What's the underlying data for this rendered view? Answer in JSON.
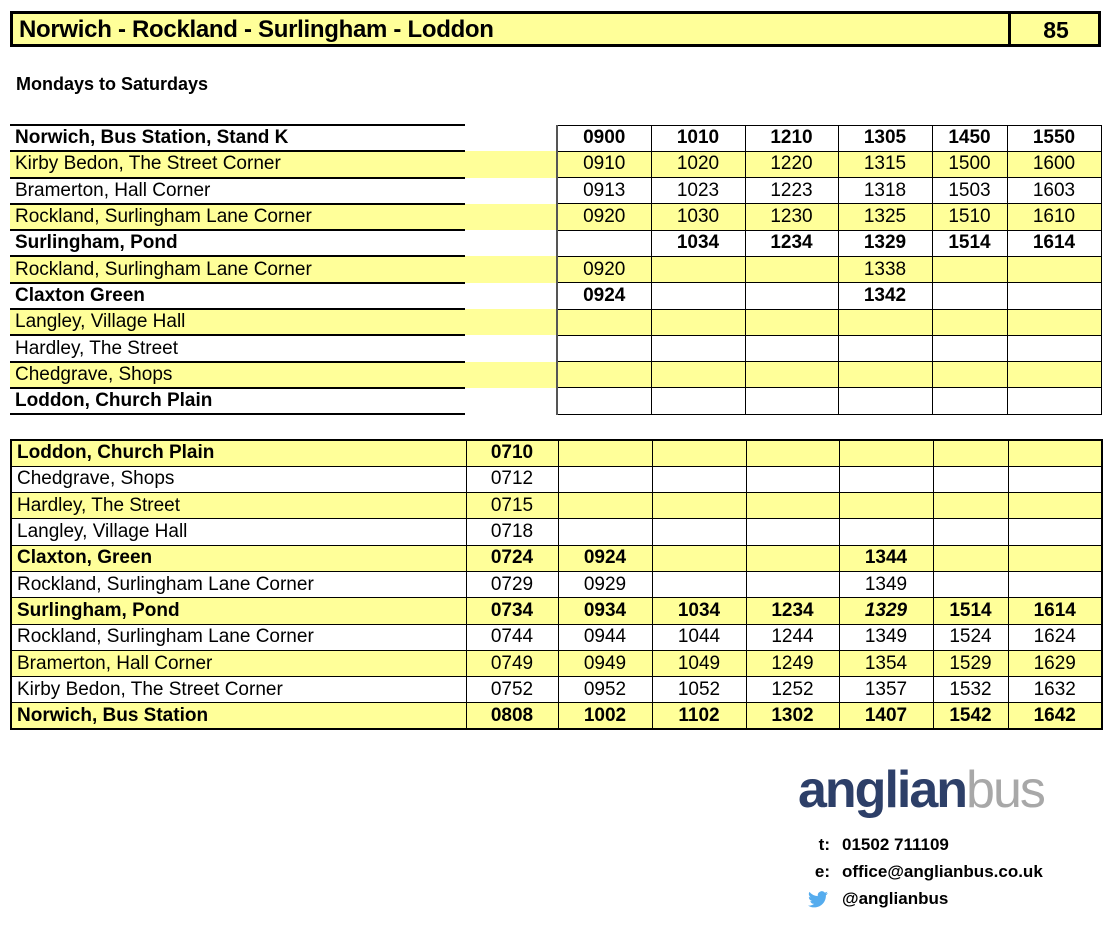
{
  "header": {
    "title": "Norwich - Rockland - Surlingham - Loddon",
    "route": "85"
  },
  "days": "Mondays to Saturdays",
  "colors": {
    "highlight": "#ffff99",
    "brand_primary": "#2d3f68",
    "brand_secondary": "#a8a8a8",
    "twitter": "#55acee"
  },
  "outbound": [
    {
      "stop": "Norwich, Bus Station, Stand K",
      "bold": true,
      "times": [
        "0900",
        "1010",
        "1210",
        "1305",
        "1450",
        "1550"
      ]
    },
    {
      "stop": "Kirby Bedon, The Street Corner",
      "times": [
        "0910",
        "1020",
        "1220",
        "1315",
        "1500",
        "1600"
      ]
    },
    {
      "stop": "Bramerton, Hall Corner",
      "times": [
        "0913",
        "1023",
        "1223",
        "1318",
        "1503",
        "1603"
      ]
    },
    {
      "stop": "Rockland, Surlingham Lane Corner",
      "times": [
        "0920",
        "1030",
        "1230",
        "1325",
        "1510",
        "1610"
      ]
    },
    {
      "stop": "Surlingham, Pond",
      "bold": true,
      "times": [
        "",
        "1034",
        "1234",
        "1329",
        "1514",
        "1614"
      ]
    },
    {
      "stop": "Rockland, Surlingham Lane Corner",
      "times": [
        "0920",
        "",
        "",
        "1338",
        "",
        ""
      ]
    },
    {
      "stop": "Claxton Green",
      "bold": true,
      "times": [
        "0924",
        "",
        "",
        "1342",
        "",
        ""
      ]
    },
    {
      "stop": "Langley, Village Hall",
      "times": [
        "",
        "",
        "",
        "",
        "",
        ""
      ]
    },
    {
      "stop": "Hardley, The Street",
      "times": [
        "",
        "",
        "",
        "",
        "",
        ""
      ]
    },
    {
      "stop": "Chedgrave, Shops",
      "times": [
        "",
        "",
        "",
        "",
        "",
        ""
      ]
    },
    {
      "stop": "Loddon, Church Plain",
      "bold": true,
      "times": [
        "",
        "",
        "",
        "",
        "",
        ""
      ]
    }
  ],
  "inbound": [
    {
      "stop": "Loddon, Church Plain",
      "bold": true,
      "times": [
        "0710",
        "",
        "",
        "",
        "",
        "",
        ""
      ]
    },
    {
      "stop": "Chedgrave, Shops",
      "times": [
        "0712",
        "",
        "",
        "",
        "",
        "",
        ""
      ]
    },
    {
      "stop": "Hardley, The Street",
      "times": [
        "0715",
        "",
        "",
        "",
        "",
        "",
        ""
      ]
    },
    {
      "stop": "Langley, Village Hall",
      "times": [
        "0718",
        "",
        "",
        "",
        "",
        "",
        ""
      ]
    },
    {
      "stop": "Claxton, Green",
      "bold": true,
      "times": [
        "0724",
        "0924",
        "",
        "",
        "1344",
        "",
        ""
      ]
    },
    {
      "stop": "Rockland, Surlingham Lane Corner",
      "times": [
        "0729",
        "0929",
        "",
        "",
        "1349",
        "",
        ""
      ]
    },
    {
      "stop": "Surlingham, Pond",
      "bold": true,
      "italic": [
        4
      ],
      "times": [
        "0734",
        "0934",
        "1034",
        "1234",
        "1329",
        "1514",
        "1614"
      ]
    },
    {
      "stop": "Rockland, Surlingham Lane Corner",
      "times": [
        "0744",
        "0944",
        "1044",
        "1244",
        "1349",
        "1524",
        "1624"
      ]
    },
    {
      "stop": "Bramerton, Hall Corner",
      "times": [
        "0749",
        "0949",
        "1049",
        "1249",
        "1354",
        "1529",
        "1629"
      ]
    },
    {
      "stop": "Kirby Bedon, The Street Corner",
      "times": [
        "0752",
        "0952",
        "1052",
        "1252",
        "1357",
        "1532",
        "1632"
      ]
    },
    {
      "stop": "Norwich, Bus Station",
      "bold": true,
      "times": [
        "0808",
        "1002",
        "1102",
        "1302",
        "1407",
        "1542",
        "1642"
      ]
    }
  ],
  "brand": {
    "logo_primary": "anglian",
    "logo_secondary": "bus"
  },
  "contact": {
    "phone_label": "t:",
    "phone": "01502 711109",
    "email_label": "e:",
    "email": "office@anglianbus.co.uk",
    "twitter_icon": "twitter-bird-icon",
    "twitter": "@anglianbus"
  }
}
